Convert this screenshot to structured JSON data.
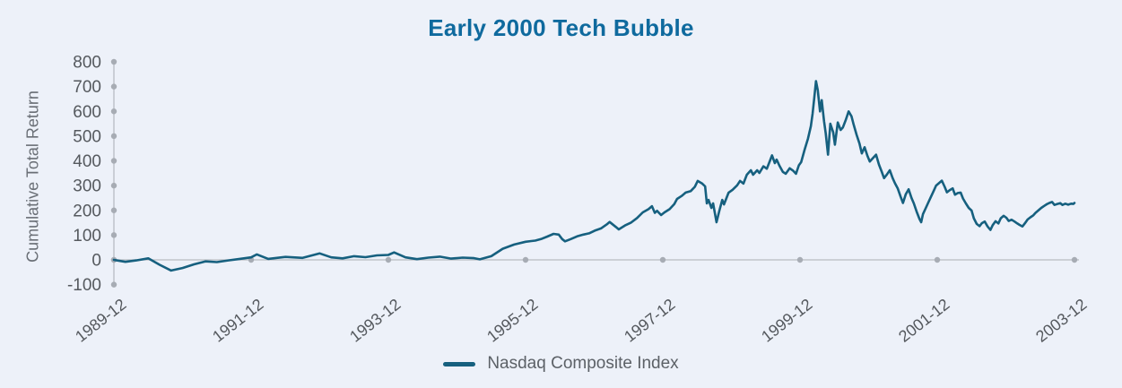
{
  "chart_data": {
    "type": "line",
    "title": "Early 2000 Tech Bubble",
    "ylabel": "Cumulative Total Return",
    "series_name": "Nasdaq Composite Index",
    "legend_position": "bottom-center",
    "grid": "zero-line-only",
    "ylim": [
      -100,
      800
    ],
    "y_ticks": [
      800,
      700,
      600,
      500,
      400,
      300,
      200,
      100,
      0,
      -100
    ],
    "x_unit": "months since 1989-12",
    "xlim_months": [
      0,
      168
    ],
    "x_ticks": [
      {
        "m": 0,
        "label": "1989-12"
      },
      {
        "m": 24,
        "label": "1991-12"
      },
      {
        "m": 48,
        "label": "1993-12"
      },
      {
        "m": 72,
        "label": "1995-12"
      },
      {
        "m": 96,
        "label": "1997-12"
      },
      {
        "m": 120,
        "label": "1999-12"
      },
      {
        "m": 144,
        "label": "2001-12"
      },
      {
        "m": 168,
        "label": "2003-12"
      }
    ],
    "colors": {
      "line": "#16607f",
      "title": "#0f6a9e",
      "tick_text": "#55595e",
      "axis_text": "#6a6f76",
      "axis_line": "#b8bcc2",
      "tick_dot": "#a7acb4",
      "background": "#edf1f9"
    },
    "points": [
      [
        0,
        0
      ],
      [
        2,
        -8
      ],
      [
        3.9,
        -2
      ],
      [
        6,
        6
      ],
      [
        8,
        -20
      ],
      [
        10,
        -43
      ],
      [
        12,
        -33
      ],
      [
        14,
        -18
      ],
      [
        16,
        -6
      ],
      [
        18,
        -9
      ],
      [
        20,
        -2
      ],
      [
        22,
        4
      ],
      [
        24,
        10
      ],
      [
        25,
        22
      ],
      [
        27,
        4
      ],
      [
        30,
        12
      ],
      [
        33,
        8
      ],
      [
        36,
        26
      ],
      [
        38,
        10
      ],
      [
        40,
        6
      ],
      [
        42,
        15
      ],
      [
        44,
        11
      ],
      [
        46,
        18
      ],
      [
        48,
        20
      ],
      [
        49,
        30
      ],
      [
        51,
        10
      ],
      [
        53,
        3
      ],
      [
        55,
        9
      ],
      [
        57,
        13
      ],
      [
        59,
        5
      ],
      [
        61,
        9
      ],
      [
        63,
        7
      ],
      [
        64,
        2
      ],
      [
        66,
        15
      ],
      [
        68,
        45
      ],
      [
        70,
        62
      ],
      [
        72,
        73
      ],
      [
        73,
        76
      ],
      [
        73.7,
        78
      ],
      [
        74.7,
        84
      ],
      [
        75.8,
        94
      ],
      [
        76.9,
        105
      ],
      [
        77.8,
        102
      ],
      [
        78.4,
        84
      ],
      [
        78.9,
        75
      ],
      [
        79.9,
        84
      ],
      [
        81,
        95
      ],
      [
        82.1,
        102
      ],
      [
        83.1,
        107
      ],
      [
        84.1,
        118
      ],
      [
        85.2,
        127
      ],
      [
        86.3,
        145
      ],
      [
        86.7,
        153
      ],
      [
        87.8,
        133
      ],
      [
        88.3,
        123
      ],
      [
        89.4,
        139
      ],
      [
        90.4,
        150
      ],
      [
        91.5,
        169
      ],
      [
        92.5,
        192
      ],
      [
        93.5,
        205
      ],
      [
        94.1,
        217
      ],
      [
        94.6,
        190
      ],
      [
        95,
        198
      ],
      [
        95.7,
        181
      ],
      [
        96.3,
        192
      ],
      [
        97.2,
        205
      ],
      [
        98,
        225
      ],
      [
        98.5,
        246
      ],
      [
        99.3,
        258
      ],
      [
        100,
        272
      ],
      [
        100.9,
        278
      ],
      [
        101.6,
        295
      ],
      [
        102.1,
        319
      ],
      [
        102.9,
        308
      ],
      [
        103.4,
        297
      ],
      [
        103.7,
        228
      ],
      [
        104,
        242
      ],
      [
        104.5,
        210
      ],
      [
        104.8,
        228
      ],
      [
        105.4,
        152
      ],
      [
        105.9,
        199
      ],
      [
        106.4,
        242
      ],
      [
        106.7,
        224
      ],
      [
        107.5,
        271
      ],
      [
        108.2,
        283
      ],
      [
        109,
        301
      ],
      [
        109.5,
        319
      ],
      [
        110.1,
        308
      ],
      [
        110.7,
        344
      ],
      [
        111.4,
        362
      ],
      [
        111.8,
        344
      ],
      [
        112.5,
        362
      ],
      [
        112.9,
        351
      ],
      [
        113.6,
        378
      ],
      [
        114.2,
        368
      ],
      [
        114.7,
        398
      ],
      [
        115.1,
        422
      ],
      [
        115.6,
        391
      ],
      [
        115.9,
        405
      ],
      [
        116.4,
        380
      ],
      [
        117,
        355
      ],
      [
        117.5,
        348
      ],
      [
        118.2,
        370
      ],
      [
        118.8,
        360
      ],
      [
        119.3,
        348
      ],
      [
        119.8,
        382
      ],
      [
        120.2,
        395
      ],
      [
        120.8,
        445
      ],
      [
        121.4,
        490
      ],
      [
        121.9,
        540
      ],
      [
        122.2,
        590
      ],
      [
        122.5,
        655
      ],
      [
        122.8,
        722
      ],
      [
        123.1,
        685
      ],
      [
        123.5,
        600
      ],
      [
        123.8,
        645
      ],
      [
        124.2,
        560
      ],
      [
        124.5,
        510
      ],
      [
        124.9,
        425
      ],
      [
        125.3,
        550
      ],
      [
        125.8,
        515
      ],
      [
        126.1,
        465
      ],
      [
        126.6,
        555
      ],
      [
        127.1,
        525
      ],
      [
        127.5,
        535
      ],
      [
        128,
        565
      ],
      [
        128.5,
        600
      ],
      [
        129,
        580
      ],
      [
        129.4,
        545
      ],
      [
        129.9,
        505
      ],
      [
        130.4,
        470
      ],
      [
        130.8,
        430
      ],
      [
        131.3,
        455
      ],
      [
        131.8,
        420
      ],
      [
        132.2,
        397
      ],
      [
        132.7,
        410
      ],
      [
        133.3,
        425
      ],
      [
        133.8,
        385
      ],
      [
        134.3,
        355
      ],
      [
        134.7,
        330
      ],
      [
        135.2,
        345
      ],
      [
        135.7,
        362
      ],
      [
        136.2,
        330
      ],
      [
        136.6,
        310
      ],
      [
        137.1,
        288
      ],
      [
        137.6,
        255
      ],
      [
        138,
        230
      ],
      [
        138.5,
        265
      ],
      [
        139,
        285
      ],
      [
        139.5,
        250
      ],
      [
        139.9,
        228
      ],
      [
        140.4,
        195
      ],
      [
        140.9,
        165
      ],
      [
        141.2,
        152
      ],
      [
        141.5,
        185
      ],
      [
        142,
        210
      ],
      [
        142.4,
        230
      ],
      [
        142.9,
        255
      ],
      [
        143.4,
        280
      ],
      [
        143.8,
        300
      ],
      [
        144.3,
        310
      ],
      [
        144.8,
        320
      ],
      [
        145.3,
        295
      ],
      [
        145.7,
        273
      ],
      [
        146.2,
        282
      ],
      [
        146.7,
        289
      ],
      [
        147.1,
        263
      ],
      [
        147.6,
        270
      ],
      [
        148.1,
        272
      ],
      [
        148.5,
        248
      ],
      [
        149,
        228
      ],
      [
        149.5,
        210
      ],
      [
        150,
        199
      ],
      [
        150.4,
        168
      ],
      [
        150.9,
        145
      ],
      [
        151.4,
        136
      ],
      [
        151.8,
        148
      ],
      [
        152.3,
        155
      ],
      [
        152.8,
        135
      ],
      [
        153.3,
        121
      ],
      [
        153.7,
        140
      ],
      [
        154.2,
        156
      ],
      [
        154.7,
        147
      ],
      [
        155.1,
        168
      ],
      [
        155.6,
        178
      ],
      [
        156.1,
        170
      ],
      [
        156.5,
        157
      ],
      [
        157,
        162
      ],
      [
        157.5,
        155
      ],
      [
        158,
        147
      ],
      [
        158.4,
        141
      ],
      [
        158.9,
        135
      ],
      [
        159.4,
        150
      ],
      [
        159.8,
        163
      ],
      [
        160.3,
        172
      ],
      [
        160.8,
        180
      ],
      [
        161.2,
        190
      ],
      [
        161.7,
        200
      ],
      [
        162.2,
        210
      ],
      [
        162.7,
        218
      ],
      [
        163.1,
        224
      ],
      [
        163.6,
        230
      ],
      [
        164.1,
        234
      ],
      [
        164.5,
        222
      ],
      [
        165,
        226
      ],
      [
        165.5,
        229
      ],
      [
        165.9,
        222
      ],
      [
        166.4,
        227
      ],
      [
        166.9,
        223
      ],
      [
        167.4,
        227
      ],
      [
        167.8,
        226
      ],
      [
        168,
        230
      ]
    ]
  }
}
